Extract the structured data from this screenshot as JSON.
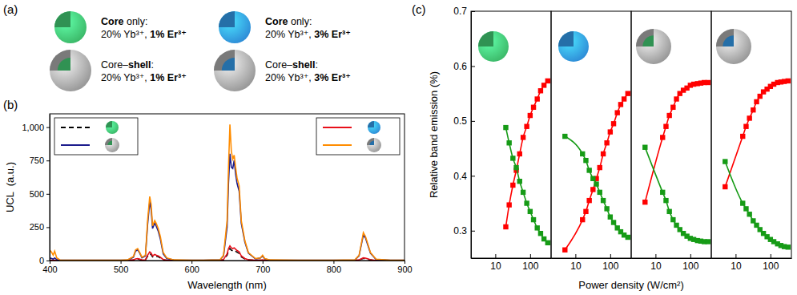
{
  "panel_labels": [
    "(a)",
    "(b)",
    "(c)"
  ],
  "diagram": {
    "items": [
      {
        "color": "#3dbb6b",
        "shell": false,
        "lines": [
          [
            {
              "text": "Core",
              "bold": true
            },
            {
              "text": " only:",
              "bold": false
            }
          ],
          [
            {
              "text": "20% Yb³⁺, ",
              "bold": false
            },
            {
              "text": "1% Er³⁺",
              "bold": true
            }
          ]
        ]
      },
      {
        "color": "#2f8fd8",
        "shell": false,
        "lines": [
          [
            {
              "text": "Core",
              "bold": true
            },
            {
              "text": " only:",
              "bold": false
            }
          ],
          [
            {
              "text": "20% Yb³⁺, ",
              "bold": false
            },
            {
              "text": "3% Er³⁺",
              "bold": true
            }
          ]
        ]
      },
      {
        "color": "#3dbb6b",
        "shell": true,
        "lines": [
          [
            {
              "text": "Core–",
              "bold": false
            },
            {
              "text": "shell",
              "bold": true
            },
            {
              "text": ":",
              "bold": false
            }
          ],
          [
            {
              "text": "20% Yb³⁺, ",
              "bold": false
            },
            {
              "text": "1% Er³⁺",
              "bold": true
            }
          ]
        ]
      },
      {
        "color": "#2f8fd8",
        "shell": true,
        "lines": [
          [
            {
              "text": "Core–",
              "bold": false
            },
            {
              "text": "shell",
              "bold": true
            },
            {
              "text": ":",
              "bold": false
            }
          ],
          [
            {
              "text": "20% Yb³⁺, ",
              "bold": false
            },
            {
              "text": "3% Er³⁺",
              "bold": true
            }
          ]
        ]
      }
    ]
  },
  "chart_data": [
    {
      "type": "line",
      "xlabel": "Wavelength (nm)",
      "ylabel": "UCL  (a.u.)",
      "legend": "top",
      "x": [
        400,
        403,
        405,
        407,
        410,
        415,
        450,
        500,
        510,
        518,
        521,
        524,
        527,
        530,
        535,
        538,
        541,
        543,
        545,
        548,
        550,
        553,
        556,
        560,
        565,
        575,
        600,
        640,
        645,
        650,
        652,
        654,
        656,
        658,
        660,
        662,
        664,
        667,
        670,
        675,
        680,
        690,
        697,
        700,
        703,
        710,
        750,
        800,
        830,
        836,
        840,
        842,
        845,
        848,
        852,
        860,
        880,
        900
      ],
      "series": [
        {
          "color": "#000000",
          "line_style": "dashed",
          "values": [
            1,
            1,
            1,
            2,
            1,
            1,
            1,
            1,
            1,
            4,
            10,
            12,
            8,
            3,
            5,
            32,
            52,
            45,
            28,
            36,
            32,
            28,
            20,
            6,
            2,
            1,
            1,
            1,
            6,
            40,
            72,
            90,
            78,
            74,
            78,
            70,
            62,
            54,
            28,
            12,
            5,
            2,
            2,
            4,
            2,
            1,
            1,
            1,
            1,
            4,
            12,
            16,
            14,
            10,
            5,
            1,
            1,
            1
          ]
        },
        {
          "color": "#e8101a",
          "line_style": "solid",
          "values": [
            2,
            2,
            2,
            3,
            2,
            1,
            1,
            1,
            1,
            5,
            12,
            15,
            10,
            4,
            6,
            40,
            65,
            55,
            35,
            45,
            40,
            35,
            25,
            8,
            3,
            1,
            1,
            1,
            8,
            50,
            90,
            110,
            95,
            90,
            95,
            85,
            75,
            65,
            35,
            15,
            6,
            2,
            3,
            5,
            2,
            1,
            1,
            1,
            1,
            5,
            15,
            20,
            18,
            13,
            6,
            1,
            1,
            1
          ]
        },
        {
          "color": "#1c1c8c",
          "line_style": "solid",
          "values": [
            20,
            15,
            10,
            20,
            8,
            2,
            2,
            2,
            4,
            25,
            70,
            80,
            55,
            20,
            35,
            270,
            440,
            380,
            240,
            280,
            260,
            220,
            160,
            50,
            15,
            4,
            2,
            5,
            35,
            250,
            580,
            800,
            700,
            690,
            750,
            650,
            580,
            520,
            280,
            140,
            55,
            12,
            20,
            35,
            12,
            4,
            2,
            2,
            4,
            35,
            140,
            190,
            170,
            120,
            55,
            8,
            2,
            2
          ]
        },
        {
          "color": "#ff8c00",
          "line_style": "solid",
          "values": [
            80,
            60,
            40,
            70,
            20,
            3,
            2,
            2,
            5,
            30,
            80,
            90,
            60,
            25,
            40,
            300,
            480,
            420,
            260,
            300,
            280,
            240,
            180,
            60,
            20,
            5,
            2,
            5,
            40,
            300,
            700,
            1020,
            820,
            760,
            790,
            700,
            620,
            560,
            300,
            150,
            60,
            15,
            20,
            40,
            15,
            5,
            2,
            2,
            5,
            40,
            150,
            210,
            180,
            130,
            60,
            10,
            3,
            2
          ]
        }
      ],
      "xlim": [
        400,
        900
      ],
      "xticks": [
        400,
        500,
        600,
        700,
        800,
        900
      ],
      "ylim": [
        0,
        1100
      ],
      "yticks": [
        0,
        250,
        500,
        750,
        {
          "value": 1000,
          "label": "1,000"
        }
      ]
    },
    {
      "type": "line",
      "log": "x",
      "xlabel": "Power density (W/cm²)",
      "ylabel": "Relative band emission (%)",
      "x": [
        20,
        25,
        32,
        40,
        50,
        63,
        80,
        100,
        125,
        160,
        200,
        250,
        320
      ],
      "series": [
        {
          "color": "#ff0000",
          "marker": "square",
          "line_style": "solid",
          "values": [
            0.307,
            0.347,
            0.383,
            0.41,
            0.44,
            0.47,
            0.49,
            0.51,
            0.525,
            0.54,
            0.555,
            0.565,
            0.573
          ]
        },
        {
          "color": "#169b16",
          "marker": "square",
          "line_style": "solid",
          "values": [
            0.488,
            0.46,
            0.432,
            0.415,
            0.39,
            0.37,
            0.35,
            0.335,
            0.32,
            0.305,
            0.295,
            0.285,
            0.278
          ]
        }
      ],
      "xlim": [
        2,
        400
      ],
      "xticks": [
        10,
        100
      ],
      "ylim": [
        0.25,
        0.7
      ],
      "yticks": [
        0.3,
        0.4,
        0.5,
        0.6,
        0.7
      ]
    },
    {
      "type": "line",
      "log": "x",
      "tick_labels": "x",
      "x": [
        5,
        16,
        20,
        25,
        32,
        40,
        50,
        63,
        80,
        100,
        125,
        160,
        200,
        250,
        320
      ],
      "series": [
        {
          "color": "#ff0000",
          "marker": "square",
          "line_style": "solid",
          "values": [
            0.265,
            0.32,
            0.335,
            0.355,
            0.375,
            0.395,
            0.415,
            0.44,
            0.46,
            0.48,
            0.495,
            0.515,
            0.53,
            0.54,
            0.55
          ]
        },
        {
          "color": "#169b16",
          "marker": "square",
          "line_style": "solid",
          "values": [
            0.472,
            0.44,
            0.428,
            0.41,
            0.395,
            0.385,
            0.37,
            0.355,
            0.34,
            0.325,
            0.315,
            0.305,
            0.298,
            0.292,
            0.288
          ]
        }
      ],
      "xlim": [
        2,
        400
      ],
      "xticks": [
        10,
        100
      ],
      "ylim": [
        0.25,
        0.7
      ]
    },
    {
      "type": "line",
      "log": "x",
      "tick_labels": "x",
      "x": [
        5,
        16,
        20,
        25,
        32,
        40,
        50,
        63,
        80,
        100,
        125,
        160,
        200,
        250,
        320
      ],
      "series": [
        {
          "color": "#ff0000",
          "marker": "square",
          "line_style": "solid",
          "values": [
            0.352,
            0.47,
            0.49,
            0.51,
            0.525,
            0.54,
            0.55,
            0.556,
            0.56,
            0.565,
            0.567,
            0.568,
            0.569,
            0.57,
            0.57
          ]
        },
        {
          "color": "#169b16",
          "marker": "square",
          "line_style": "solid",
          "values": [
            0.452,
            0.37,
            0.355,
            0.335,
            0.32,
            0.31,
            0.302,
            0.295,
            0.29,
            0.286,
            0.284,
            0.282,
            0.281,
            0.28,
            0.28
          ]
        }
      ],
      "xlim": [
        2,
        400
      ],
      "xticks": [
        10,
        100
      ],
      "ylim": [
        0.25,
        0.7
      ]
    },
    {
      "type": "line",
      "log": "x",
      "tick_labels": "x",
      "x": [
        5,
        16,
        20,
        25,
        32,
        40,
        50,
        63,
        80,
        100,
        125,
        160,
        200,
        250,
        320
      ],
      "series": [
        {
          "color": "#ff0000",
          "marker": "square",
          "line_style": "solid",
          "values": [
            0.38,
            0.472,
            0.49,
            0.505,
            0.52,
            0.535,
            0.545,
            0.553,
            0.558,
            0.563,
            0.567,
            0.57,
            0.571,
            0.572,
            0.573
          ]
        },
        {
          "color": "#169b16",
          "marker": "square",
          "line_style": "solid",
          "values": [
            0.426,
            0.35,
            0.34,
            0.33,
            0.318,
            0.31,
            0.302,
            0.295,
            0.289,
            0.284,
            0.28,
            0.276,
            0.273,
            0.271,
            0.27
          ]
        }
      ],
      "xlim": [
        2,
        400
      ],
      "xticks": [
        10,
        100
      ],
      "ylim": [
        0.25,
        0.7
      ]
    }
  ]
}
